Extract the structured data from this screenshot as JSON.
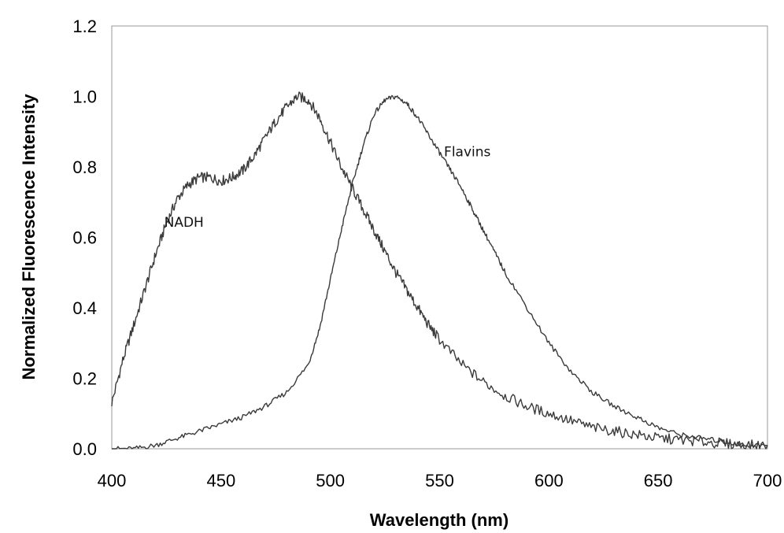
{
  "chart_data": {
    "type": "line",
    "title": "",
    "xlabel": "Wavelength (nm)",
    "ylabel": "Normalized Fluorescence Intensity",
    "xlim": [
      400,
      700
    ],
    "ylim": [
      0.0,
      1.2
    ],
    "xticks": [
      "400",
      "450",
      "500",
      "550",
      "600",
      "650",
      "700"
    ],
    "yticks": [
      "0.0",
      "0.2",
      "0.4",
      "0.6",
      "0.8",
      "1.0",
      "1.2"
    ],
    "grid": false,
    "line_color": "#3a3a3a",
    "series": [
      {
        "label": "NADH",
        "x": [
          400,
          405,
          410,
          415,
          420,
          425,
          430,
          435,
          440,
          445,
          450,
          455,
          460,
          465,
          470,
          475,
          480,
          485,
          490,
          495,
          500,
          505,
          510,
          515,
          520,
          525,
          530,
          535,
          540,
          545,
          550,
          560,
          570,
          580,
          590,
          600,
          610,
          620,
          630,
          640,
          650,
          660,
          670,
          680,
          690,
          700
        ],
        "y": [
          0.13,
          0.25,
          0.35,
          0.45,
          0.55,
          0.64,
          0.71,
          0.75,
          0.77,
          0.77,
          0.76,
          0.77,
          0.79,
          0.83,
          0.88,
          0.93,
          0.97,
          1.0,
          0.99,
          0.94,
          0.87,
          0.8,
          0.74,
          0.68,
          0.62,
          0.56,
          0.5,
          0.45,
          0.4,
          0.35,
          0.31,
          0.24,
          0.19,
          0.15,
          0.12,
          0.1,
          0.08,
          0.06,
          0.05,
          0.04,
          0.03,
          0.025,
          0.02,
          0.015,
          0.01,
          0.01
        ]
      },
      {
        "label": "Flavins",
        "x": [
          400,
          410,
          420,
          430,
          440,
          450,
          460,
          470,
          480,
          490,
          495,
          500,
          505,
          510,
          515,
          520,
          525,
          530,
          535,
          540,
          545,
          550,
          555,
          560,
          565,
          570,
          575,
          580,
          590,
          600,
          610,
          620,
          630,
          640,
          650,
          660,
          670,
          680,
          690,
          700
        ],
        "y": [
          0.0,
          0.0,
          0.01,
          0.03,
          0.05,
          0.07,
          0.09,
          0.12,
          0.16,
          0.24,
          0.34,
          0.48,
          0.62,
          0.75,
          0.86,
          0.95,
          0.99,
          1.0,
          0.98,
          0.94,
          0.89,
          0.84,
          0.79,
          0.74,
          0.68,
          0.62,
          0.56,
          0.5,
          0.4,
          0.3,
          0.22,
          0.16,
          0.12,
          0.09,
          0.06,
          0.04,
          0.03,
          0.02,
          0.01,
          0.01
        ]
      }
    ],
    "annotations": [
      {
        "text": "NADH",
        "x": 424,
        "y": 0.63
      },
      {
        "text": "Flavins",
        "x": 552,
        "y": 0.83
      }
    ]
  }
}
